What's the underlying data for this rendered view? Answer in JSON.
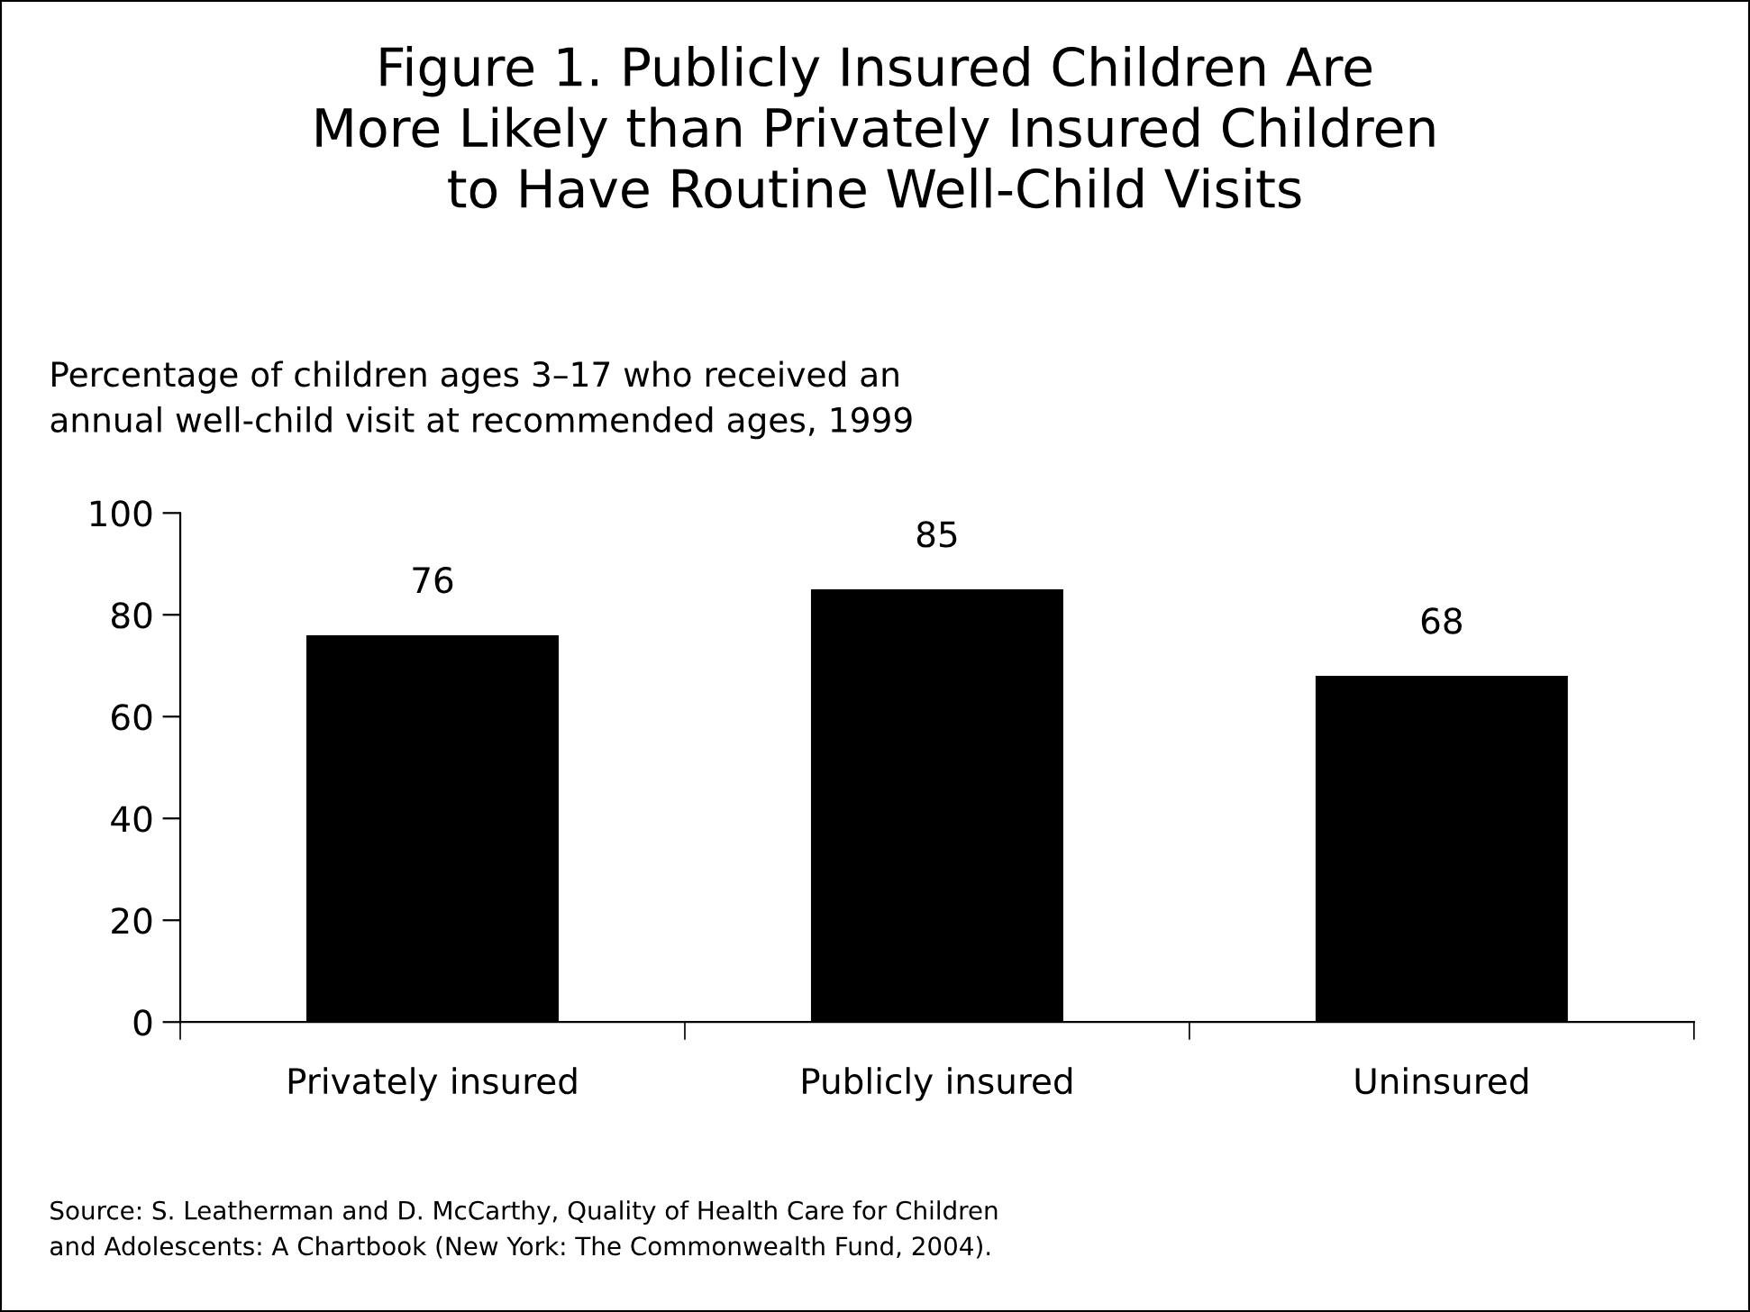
{
  "chart_data": {
    "type": "bar",
    "title": "Figure 1. Publicly Insured Children Are\nMore Likely than Privately Insured Children\nto Have Routine Well-Child Visits",
    "subtitle": "Percentage of children ages 3–17 who received an\nannual well-child visit at recommended ages, 1999",
    "categories": [
      "Privately insured",
      "Publicly insured",
      "Uninsured"
    ],
    "values": [
      76,
      85,
      68
    ],
    "color": "#000000",
    "ylim": [
      0,
      100
    ],
    "yticks": [
      0,
      20,
      40,
      60,
      80,
      100
    ],
    "data_labels": true,
    "grid": false,
    "legend": false,
    "annotations": [
      "Source: S. Leatherman and D. McCarthy, Quality of Health Care for Children\nand Adolescents: A Chartbook (New York: The Commonwealth Fund, 2004)."
    ]
  }
}
